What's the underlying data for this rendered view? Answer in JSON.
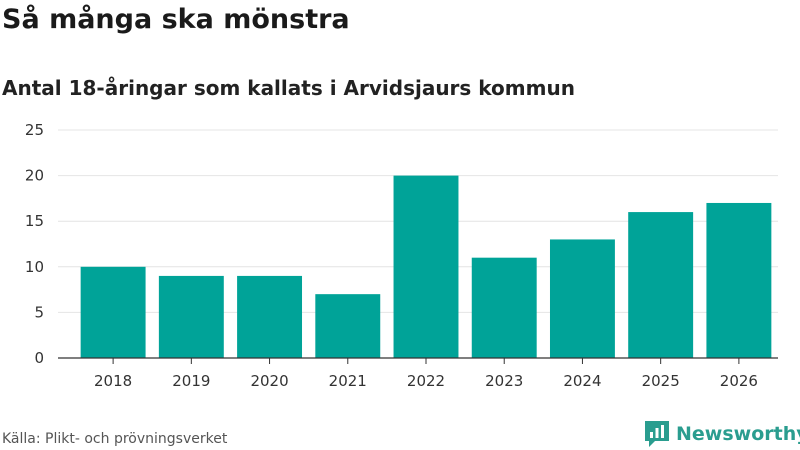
{
  "header": {
    "title": "Så många ska mönstra",
    "subtitle": "Antal 18-åringar som kallats i Arvidsjaurs kommun"
  },
  "footer": {
    "source": "Källa: Plikt- och prövningsverket",
    "brand": "Newsworthy"
  },
  "colors": {
    "bar": "#00a398",
    "grid": "#e4e4e4",
    "axis": "#333333",
    "brand": "#2a9d8f"
  },
  "chart_data": {
    "type": "bar",
    "categories": [
      "2018",
      "2019",
      "2020",
      "2021",
      "2022",
      "2023",
      "2024",
      "2025",
      "2026"
    ],
    "values": [
      10,
      9,
      9,
      7,
      20,
      11,
      13,
      16,
      17
    ],
    "yticks": [
      0,
      5,
      10,
      15,
      20,
      25
    ],
    "ylim": [
      0,
      25
    ],
    "grid": true,
    "legend": "none"
  }
}
